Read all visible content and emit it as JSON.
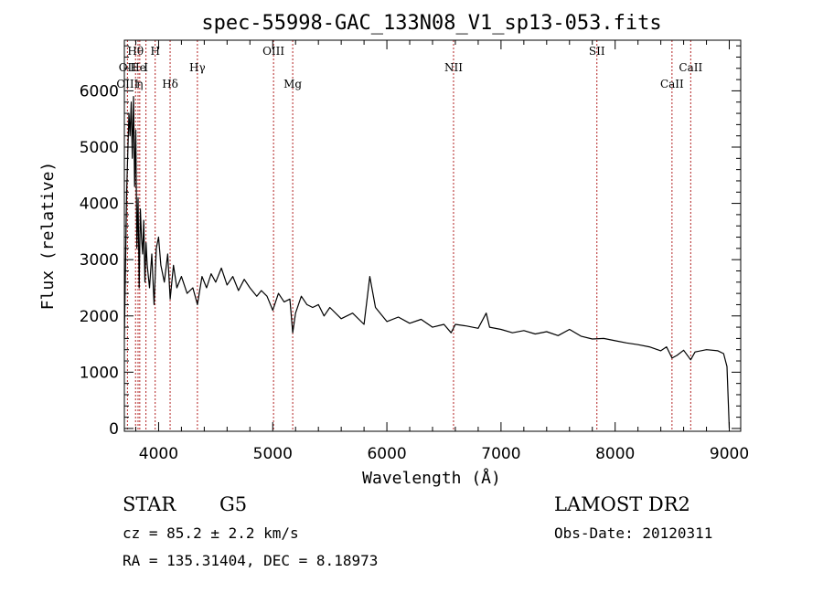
{
  "chart_data": {
    "type": "line",
    "title": "spec-55998-GAC_133N08_V1_sp13-053.fits",
    "xlabel": "Wavelength (Å)",
    "ylabel": "Flux (relative)",
    "xlim": [
      3700,
      9100
    ],
    "ylim": [
      -50,
      6900
    ],
    "x_ticks": [
      4000,
      5000,
      6000,
      7000,
      8000,
      9000
    ],
    "y_ticks": [
      0,
      1000,
      2000,
      3000,
      4000,
      5000,
      6000
    ],
    "grid": false,
    "series": [
      {
        "x": [
          3700,
          3720,
          3740,
          3750,
          3760,
          3770,
          3780,
          3790,
          3800,
          3810,
          3820,
          3830,
          3840,
          3850,
          3860,
          3870,
          3880,
          3890,
          3900,
          3920,
          3940,
          3960,
          3970,
          3980,
          4000,
          4020,
          4050,
          4080,
          4101,
          4130,
          4160,
          4200,
          4250,
          4300,
          4340,
          4380,
          4420,
          4460,
          4500,
          4550,
          4600,
          4650,
          4700,
          4750,
          4800,
          4860,
          4900,
          4950,
          5000,
          5050,
          5100,
          5150,
          5175,
          5200,
          5250,
          5300,
          5350,
          5400,
          5450,
          5500,
          5600,
          5700,
          5800,
          5850,
          5900,
          6000,
          6100,
          6200,
          6300,
          6400,
          6500,
          6563,
          6600,
          6700,
          6800,
          6870,
          6900,
          7000,
          7100,
          7200,
          7300,
          7400,
          7500,
          7600,
          7700,
          7800,
          7900,
          8000,
          8100,
          8200,
          8300,
          8400,
          8450,
          8498,
          8542,
          8600,
          8662,
          8700,
          8800,
          8900,
          8950,
          8980,
          9000
        ],
        "y": [
          1600,
          4200,
          5600,
          5200,
          5800,
          4800,
          5900,
          4300,
          5300,
          3200,
          4100,
          2500,
          3900,
          3400,
          3100,
          3700,
          2600,
          3300,
          2900,
          2500,
          3100,
          2200,
          2700,
          3200,
          3400,
          2900,
          2600,
          3100,
          2300,
          2900,
          2500,
          2700,
          2400,
          2500,
          2200,
          2700,
          2500,
          2750,
          2600,
          2850,
          2550,
          2700,
          2450,
          2650,
          2500,
          2350,
          2450,
          2350,
          2100,
          2400,
          2250,
          2300,
          1700,
          2050,
          2350,
          2200,
          2150,
          2200,
          2000,
          2150,
          1950,
          2050,
          1850,
          2700,
          2150,
          1900,
          1980,
          1870,
          1940,
          1800,
          1850,
          1700,
          1850,
          1820,
          1780,
          2050,
          1800,
          1760,
          1700,
          1740,
          1680,
          1720,
          1650,
          1760,
          1640,
          1590,
          1600,
          1560,
          1520,
          1490,
          1450,
          1380,
          1450,
          1250,
          1300,
          1390,
          1220,
          1360,
          1400,
          1380,
          1330,
          1100,
          0
        ]
      }
    ],
    "line_markers": [
      {
        "label": "Hθ",
        "wavelength": 3798,
        "row": 0
      },
      {
        "label": "H",
        "wavelength": 3970,
        "row": 0
      },
      {
        "label": "OIII",
        "wavelength": 5007,
        "row": 0
      },
      {
        "label": "NII",
        "wavelength": 6584,
        "row": 1
      },
      {
        "label": "SII",
        "wavelength": 7840,
        "row": 0
      },
      {
        "label": "CaII",
        "wavelength": 8662,
        "row": 1
      },
      {
        "label": "OII",
        "wavelength": 3727,
        "row": 1
      },
      {
        "label": "He",
        "wavelength": 3820,
        "row": 1
      },
      {
        "label": "I",
        "wavelength": 3889,
        "row": 1
      },
      {
        "label": "Hγ",
        "wavelength": 4340,
        "row": 1
      },
      {
        "label": "OIII",
        "wavelength": 3727,
        "row": 2
      },
      {
        "label": "η",
        "wavelength": 3835,
        "row": 2
      },
      {
        "label": "Hδ",
        "wavelength": 4101,
        "row": 2
      },
      {
        "label": "Mg",
        "wavelength": 5175,
        "row": 2
      },
      {
        "label": "CaII",
        "wavelength": 8498,
        "row": 2
      }
    ],
    "extra_line_positions": [
      3835,
      3889,
      5175,
      8498
    ]
  },
  "info": {
    "object_class": "STAR",
    "subclass": "G5",
    "survey": "LAMOST DR2",
    "redshift": "cz = 85.2 ± 2.2 km/s",
    "obs_date": "Obs-Date: 20120311",
    "coords": "RA = 135.31404, DEC =   8.18973"
  }
}
